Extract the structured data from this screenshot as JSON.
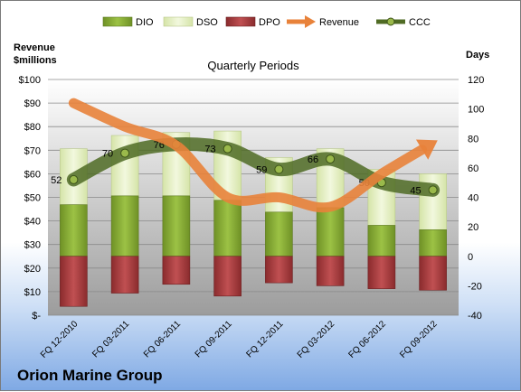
{
  "company": "Orion Marine Group",
  "chart_data": {
    "type": "bar",
    "title": "Quarterly Periods",
    "left_axis_label": [
      "Revenue",
      "$millions"
    ],
    "right_axis_label": "Days",
    "categories": [
      "FQ 12-2010",
      "FQ 03-2011",
      "FQ 06-2011",
      "FQ 09-2011",
      "FQ 12-2011",
      "FQ 03-2012",
      "FQ 06-2012",
      "FQ 09-2012"
    ],
    "left_axis": {
      "min": 0,
      "max": 100,
      "step": 10,
      "tick_labels": [
        "$-",
        "$10",
        "$20",
        "$30",
        "$40",
        "$50",
        "$60",
        "$70",
        "$80",
        "$90",
        "$100"
      ]
    },
    "right_axis": {
      "min": -40,
      "max": 120,
      "step": 20,
      "tick_labels": [
        "-40",
        "-20",
        "0",
        "20",
        "40",
        "60",
        "80",
        "100",
        "120"
      ]
    },
    "series": [
      {
        "name": "DIO",
        "kind": "stacked-bar",
        "axis": "right",
        "color": "#8fb33c",
        "values": [
          35,
          41,
          41,
          38,
          30,
          33,
          21,
          18
        ]
      },
      {
        "name": "DSO",
        "kind": "stacked-bar",
        "axis": "right",
        "color": "#e6f0c7",
        "values": [
          38,
          41,
          43,
          47,
          37,
          40,
          38,
          38
        ]
      },
      {
        "name": "DPO",
        "kind": "stacked-bar",
        "axis": "right",
        "color": "#a8393b",
        "values": [
          -34,
          -25,
          -19,
          -27,
          -18,
          -20,
          -22,
          -23
        ]
      },
      {
        "name": "Revenue",
        "kind": "line",
        "axis": "left",
        "color": "#e8823a",
        "values": [
          90,
          80,
          72,
          50,
          50,
          46,
          60,
          73
        ]
      },
      {
        "name": "CCC",
        "kind": "line",
        "axis": "right",
        "color": "#4f6b24",
        "values": [
          52,
          70,
          76,
          73,
          59,
          66,
          50,
          45
        ],
        "labels": [
          "52",
          "70",
          "76",
          "73",
          "59",
          "66",
          "50",
          "45"
        ]
      }
    ],
    "legend": [
      "DIO",
      "DSO",
      "DPO",
      "Revenue",
      "CCC"
    ],
    "legend_position": "top",
    "grid": true
  }
}
